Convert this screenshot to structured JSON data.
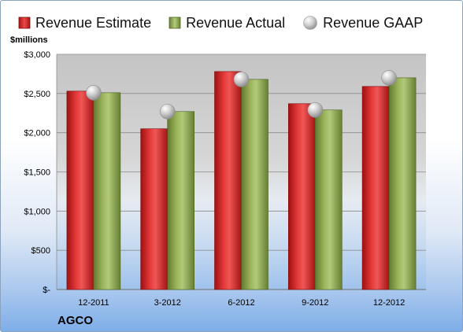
{
  "chart_data": {
    "type": "bar",
    "title": "",
    "ylabel": "$millions",
    "xlabel": "",
    "categories": [
      "12-2011",
      "3-2012",
      "6-2012",
      "9-2012",
      "12-2012"
    ],
    "series": [
      {
        "name": "Revenue Estimate",
        "type": "bar",
        "color": "#d42a2a",
        "values": [
          2530,
          2050,
          2780,
          2370,
          2590
        ]
      },
      {
        "name": "Revenue Actual",
        "type": "bar",
        "color": "#8faa4e",
        "values": [
          2510,
          2270,
          2680,
          2290,
          2700
        ]
      },
      {
        "name": "Revenue GAAP",
        "type": "point",
        "color": "#c0c0c0",
        "values": [
          2510,
          2270,
          2680,
          2290,
          2700
        ]
      }
    ],
    "ylim": [
      0,
      3000
    ],
    "yticks": [
      0,
      500,
      1000,
      1500,
      2000,
      2500,
      3000
    ],
    "ytick_labels": [
      "$-",
      "$500",
      "$1,000",
      "$1,500",
      "$2,000",
      "$2,500",
      "$3,000"
    ],
    "grid": true,
    "legend_position": "top"
  },
  "legend": {
    "estimate": "Revenue Estimate",
    "actual": "Revenue Actual",
    "gaap": "Revenue GAAP"
  },
  "units_label": "$millions",
  "brand": "AGCO"
}
